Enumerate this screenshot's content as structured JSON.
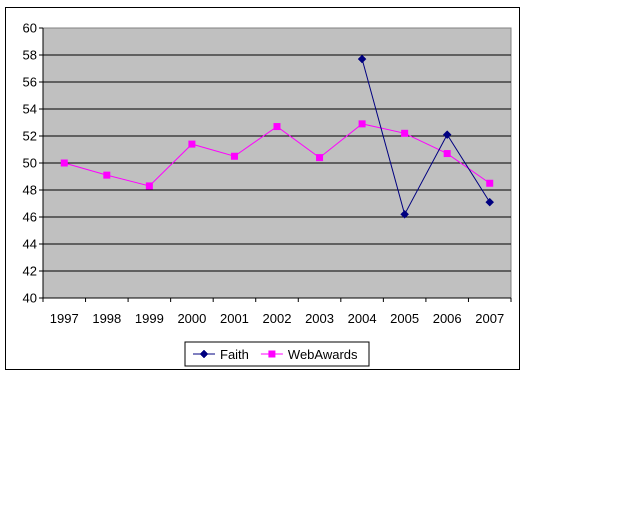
{
  "chart_data": {
    "type": "line",
    "x": [
      "1997",
      "1998",
      "1999",
      "2000",
      "2001",
      "2002",
      "2003",
      "2004",
      "2005",
      "2006",
      "2007"
    ],
    "ylim": [
      40,
      60
    ],
    "ytick_step": 2,
    "grid": true,
    "legend_position": "bottom",
    "plot_background": "#c0c0c0",
    "series": [
      {
        "name": "Faith",
        "color": "#000080",
        "marker": "diamond",
        "values": [
          null,
          null,
          null,
          null,
          null,
          null,
          null,
          57.7,
          46.2,
          52.1,
          47.1
        ]
      },
      {
        "name": "WebAwards",
        "color": "#ff00ff",
        "marker": "square",
        "values": [
          50.0,
          49.1,
          48.3,
          51.4,
          50.5,
          52.7,
          50.4,
          52.9,
          52.2,
          50.7,
          48.5
        ]
      }
    ]
  }
}
